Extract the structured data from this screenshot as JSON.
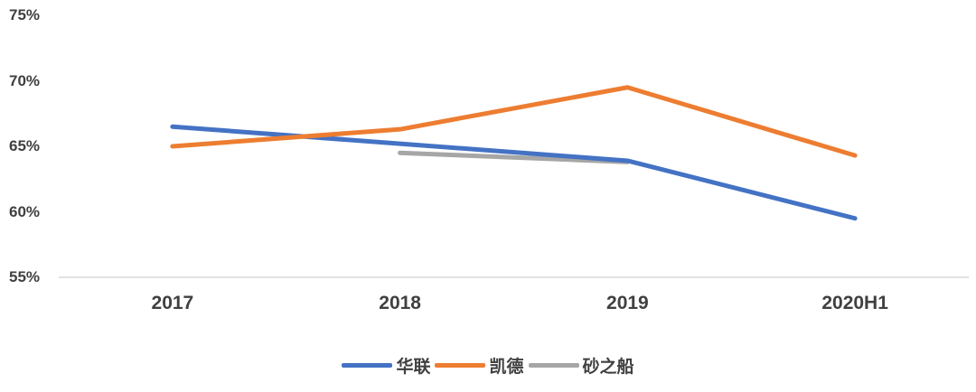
{
  "chart_data": {
    "type": "line",
    "title": "",
    "xlabel": "",
    "ylabel": "",
    "categories": [
      "2017",
      "2018",
      "2019",
      "2020H1"
    ],
    "series": [
      {
        "name": "华联",
        "color": "#4472C4",
        "values": [
          66.5,
          65.2,
          63.9,
          59.5
        ]
      },
      {
        "name": "凯德",
        "color": "#ED7D31",
        "values": [
          65.0,
          66.3,
          69.5,
          64.3
        ]
      },
      {
        "name": "砂之船",
        "color": "#A6A6A6",
        "values": [
          null,
          64.5,
          63.8,
          null
        ]
      }
    ],
    "ylim": [
      55,
      75
    ],
    "yticks": [
      75,
      70,
      65,
      60,
      55
    ],
    "ytick_labels": [
      "75%",
      "70%",
      "65%",
      "60%",
      "55%"
    ],
    "grid": false,
    "axis_line_color": "#d9d9d9",
    "text_color": "#404040",
    "legend_position": "bottom"
  }
}
